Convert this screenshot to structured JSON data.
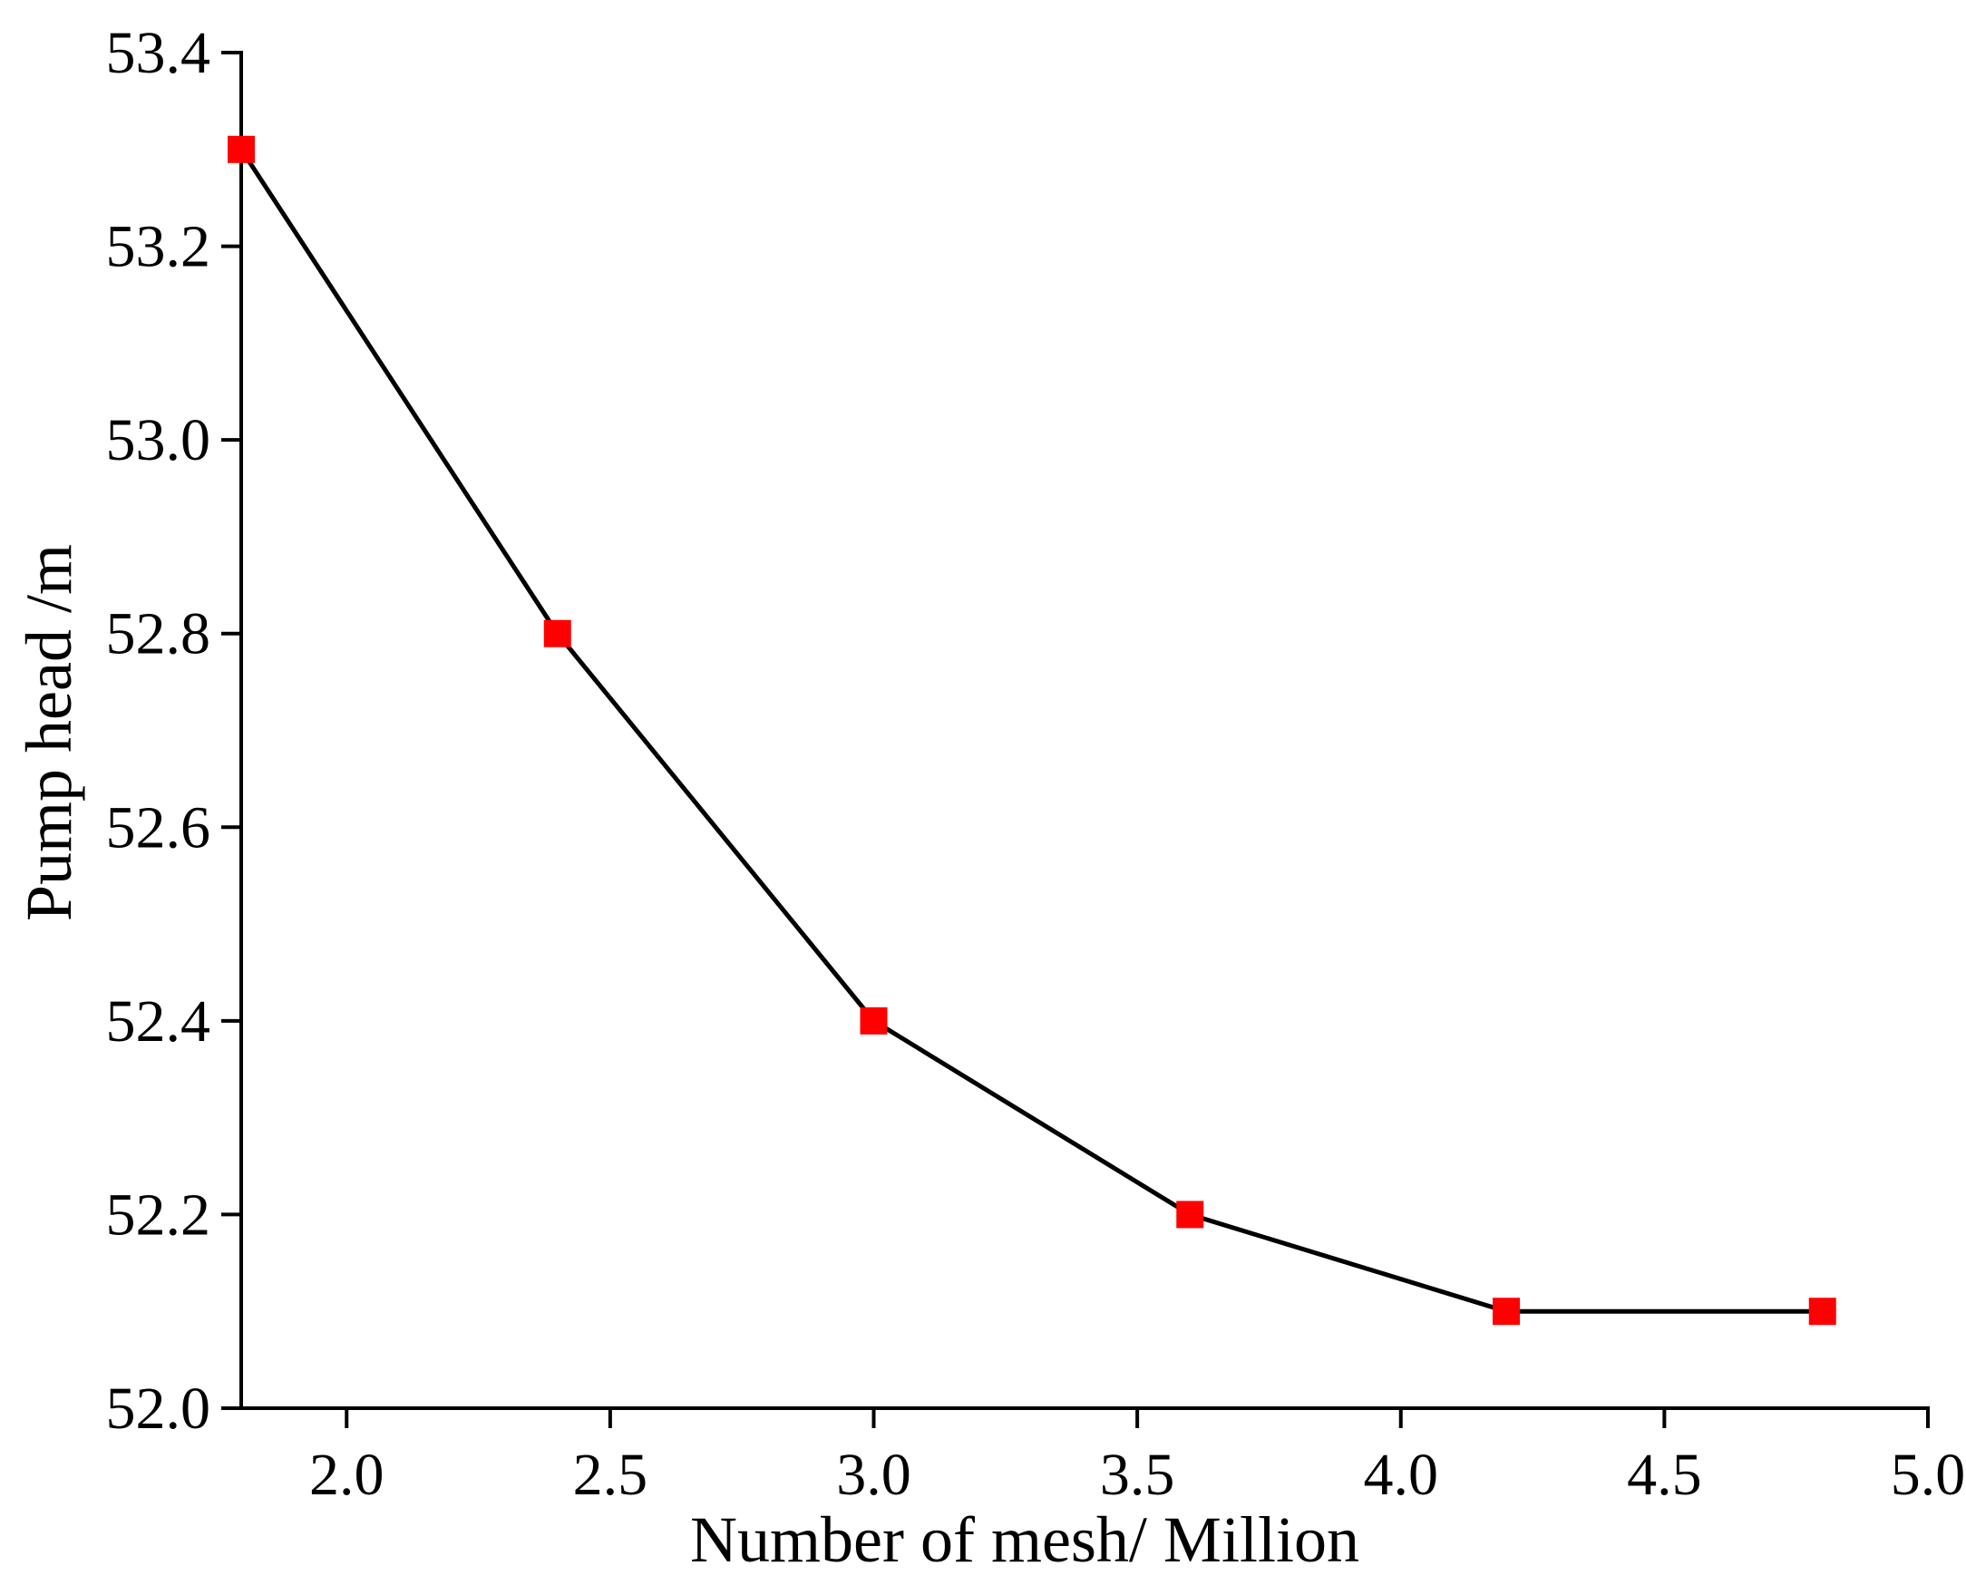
{
  "chart_data": {
    "type": "line",
    "title": "",
    "xlabel": "Number of mesh/ Million",
    "ylabel": "Pump head /m",
    "xlim": [
      1.8,
      5.0
    ],
    "ylim": [
      52.0,
      53.4
    ],
    "x_ticks": [
      "2.0",
      "2.5",
      "3.0",
      "3.5",
      "4.0",
      "4.5",
      "5.0"
    ],
    "x_tick_values": [
      2.0,
      2.5,
      3.0,
      3.5,
      4.0,
      4.5,
      5.0
    ],
    "y_ticks": [
      "52.0",
      "52.2",
      "52.4",
      "52.6",
      "52.8",
      "53.0",
      "53.2",
      "53.4"
    ],
    "y_tick_values": [
      52.0,
      52.2,
      52.4,
      52.6,
      52.8,
      53.0,
      53.2,
      53.4
    ],
    "grid": false,
    "legend": "none",
    "series": [
      {
        "x": [
          1.8,
          2.4,
          3.0,
          3.6,
          4.2,
          4.8
        ],
        "y": [
          53.3,
          52.8,
          52.4,
          52.2,
          52.1,
          52.1
        ],
        "line_color": "#000000",
        "marker": "square",
        "marker_color": "#ff0000"
      }
    ]
  }
}
